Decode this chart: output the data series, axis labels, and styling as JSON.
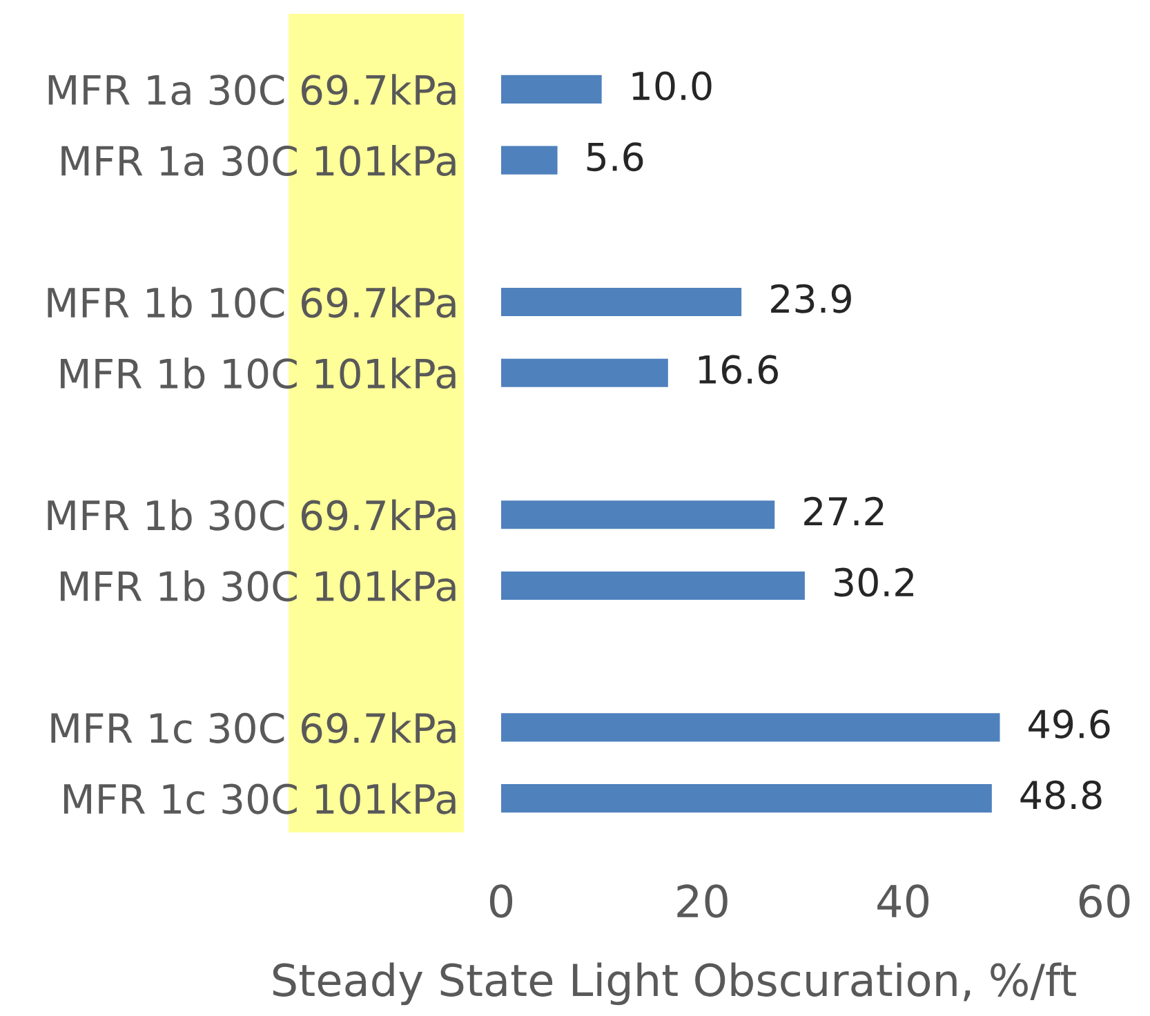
{
  "chart_data": {
    "type": "bar",
    "orientation": "horizontal",
    "xlabel": "Steady State Light Obscuration, %/ft",
    "categories": [
      "MFR 1a 30C 69.7kPa",
      "MFR 1a 30C 101kPa",
      null,
      "MFR 1b 10C 69.7kPa",
      "MFR 1b 10C 101kPa",
      null,
      "MFR 1b 30C 69.7kPa",
      "MFR 1b 30C 101kPa",
      null,
      "MFR 1c 30C 69.7kPa",
      "MFR 1c 30C 101kPa"
    ],
    "values": [
      10.0,
      5.6,
      null,
      23.9,
      16.6,
      null,
      27.2,
      30.2,
      null,
      49.6,
      48.8
    ],
    "value_labels": [
      "10.0",
      "5.6",
      null,
      "23.9",
      "16.6",
      null,
      "27.2",
      "30.2",
      null,
      "49.6",
      "48.8"
    ],
    "color": "#4f81bd",
    "xlim": [
      0,
      60
    ],
    "xticks": [
      0,
      20,
      40,
      60
    ],
    "grid": false,
    "legend": false
  }
}
